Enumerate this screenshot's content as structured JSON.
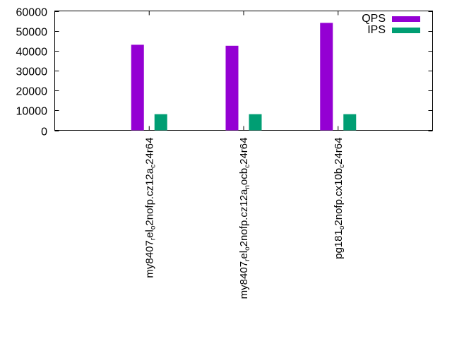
{
  "chart_data": {
    "type": "bar",
    "title": "",
    "xlabel": "",
    "ylabel": "",
    "ylim": [
      0,
      60000
    ],
    "yticks": [
      0,
      10000,
      20000,
      30000,
      40000,
      50000,
      60000
    ],
    "grid": false,
    "legend_position": "top-right",
    "categories": [
      {
        "label": "my8407rel o2nofp.cz12a c24r64",
        "parts": [
          [
            "my8407",
            ""
          ],
          [
            "r",
            "sub"
          ],
          [
            "el",
            ""
          ],
          [
            "o",
            "sub"
          ],
          [
            "2nofp.cz12a",
            ""
          ],
          [
            "c",
            "sub"
          ],
          [
            "24r64",
            ""
          ]
        ]
      },
      {
        "label": "my8407rel o2nofp.cz12a nocb c24r64",
        "parts": [
          [
            "my8407",
            ""
          ],
          [
            "r",
            "sub"
          ],
          [
            "el",
            ""
          ],
          [
            "o",
            "sub"
          ],
          [
            "2nofp.cz12a",
            ""
          ],
          [
            "n",
            "sub"
          ],
          [
            "ocb",
            ""
          ],
          [
            "c",
            "sub"
          ],
          [
            "24r64",
            ""
          ]
        ]
      },
      {
        "label": "pg181 o2nofp.cx10b c24r64",
        "parts": [
          [
            "pg181",
            ""
          ],
          [
            "o",
            "sub"
          ],
          [
            "2nofp.cx10b",
            ""
          ],
          [
            "c",
            "sub"
          ],
          [
            "24r64",
            ""
          ]
        ]
      }
    ],
    "series": [
      {
        "name": "QPS",
        "color": "#9400d3",
        "values": [
          43000,
          42500,
          54000
        ]
      },
      {
        "name": "IPS",
        "color": "#009e73",
        "values": [
          8100,
          8100,
          8100
        ]
      }
    ]
  }
}
